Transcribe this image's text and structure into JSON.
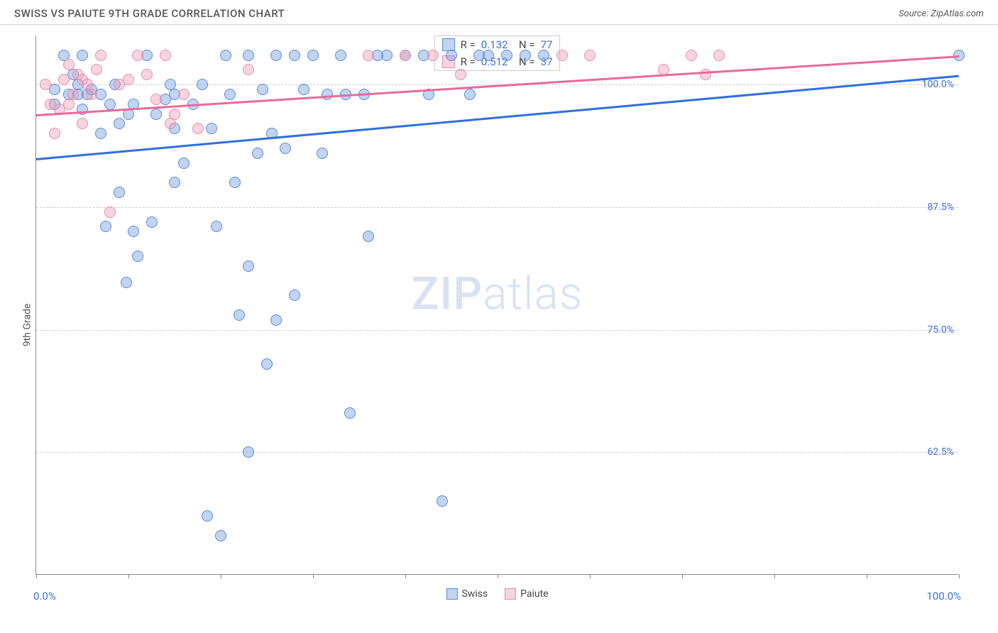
{
  "header": {
    "title": "SWISS VS PAIUTE 9TH GRADE CORRELATION CHART",
    "source": "Source: ZipAtlas.com"
  },
  "chart": {
    "type": "scatter",
    "ylabel": "9th Grade",
    "xlim": [
      0,
      100
    ],
    "ylim": [
      50,
      105
    ],
    "xtick_positions": [
      0,
      10,
      20,
      30,
      40,
      50,
      60,
      70,
      80,
      90,
      100
    ],
    "ytick_positions": [
      62.5,
      75,
      87.5,
      100
    ],
    "ytick_labels": [
      "62.5%",
      "75.0%",
      "87.5%",
      "100.0%"
    ],
    "xlabel_min": "0.0%",
    "xlabel_max": "100.0%",
    "grid_color": "#cccccc",
    "axis_color": "#888888",
    "background_color": "#ffffff",
    "marker_radius": 8,
    "watermark": "ZIPatlas",
    "series": [
      {
        "name": "Swiss",
        "color_fill": "rgba(120,160,225,0.45)",
        "color_stroke": "#5a8bd0",
        "trend_color": "#2f6fe0",
        "R": "0.132",
        "N": "77",
        "trend": {
          "x1": 0,
          "y1": 92.5,
          "x2": 100,
          "y2": 101
        },
        "points": [
          [
            2,
            98
          ],
          [
            2,
            99.5
          ],
          [
            3,
            103
          ],
          [
            3.5,
            99
          ],
          [
            4,
            101
          ],
          [
            4.5,
            100
          ],
          [
            4.5,
            99
          ],
          [
            5,
            97.5
          ],
          [
            5,
            103
          ],
          [
            5.5,
            99
          ],
          [
            6,
            99.5
          ],
          [
            7,
            95
          ],
          [
            7,
            99
          ],
          [
            7.5,
            85.5
          ],
          [
            8,
            98
          ],
          [
            8.5,
            100
          ],
          [
            9,
            96
          ],
          [
            9,
            89
          ],
          [
            9.8,
            79.8
          ],
          [
            10,
            97
          ],
          [
            10.5,
            85
          ],
          [
            10.5,
            98
          ],
          [
            11,
            82.5
          ],
          [
            12,
            103
          ],
          [
            12.5,
            86
          ],
          [
            13,
            97
          ],
          [
            14,
            98.5
          ],
          [
            14.5,
            100
          ],
          [
            15,
            99
          ],
          [
            15,
            95.5
          ],
          [
            15,
            90
          ],
          [
            16,
            92
          ],
          [
            17,
            98
          ],
          [
            18,
            100
          ],
          [
            18.5,
            56
          ],
          [
            19,
            95.5
          ],
          [
            19.5,
            85.5
          ],
          [
            20,
            54
          ],
          [
            20.5,
            103
          ],
          [
            21,
            99
          ],
          [
            21.5,
            90
          ],
          [
            22,
            76.5
          ],
          [
            23,
            81.5
          ],
          [
            23,
            103
          ],
          [
            23,
            62.5
          ],
          [
            24,
            93
          ],
          [
            24.5,
            99.5
          ],
          [
            25,
            71.5
          ],
          [
            25.5,
            95
          ],
          [
            26,
            103
          ],
          [
            26,
            76
          ],
          [
            27,
            93.5
          ],
          [
            28,
            103
          ],
          [
            28,
            78.5
          ],
          [
            29,
            99.5
          ],
          [
            30,
            103
          ],
          [
            31,
            93
          ],
          [
            31.5,
            99
          ],
          [
            33,
            103
          ],
          [
            33.5,
            99
          ],
          [
            34,
            66.5
          ],
          [
            35.5,
            99
          ],
          [
            36,
            84.5
          ],
          [
            37,
            103
          ],
          [
            38,
            103
          ],
          [
            40,
            103
          ],
          [
            42,
            103
          ],
          [
            42.5,
            99
          ],
          [
            44,
            57.5
          ],
          [
            45,
            103
          ],
          [
            47,
            99
          ],
          [
            48,
            103
          ],
          [
            49,
            103
          ],
          [
            51,
            103
          ],
          [
            53,
            103
          ],
          [
            55,
            103
          ],
          [
            100,
            103
          ]
        ]
      },
      {
        "name": "Paiute",
        "color_fill": "rgba(240,160,185,0.45)",
        "color_stroke": "#e38fae",
        "trend_color": "#e86a9a",
        "R": "0.512",
        "N": "37",
        "trend": {
          "x1": 0,
          "y1": 97,
          "x2": 100,
          "y2": 103
        },
        "points": [
          [
            1,
            100
          ],
          [
            1.5,
            98
          ],
          [
            2,
            95
          ],
          [
            2.5,
            97.5
          ],
          [
            3,
            100.5
          ],
          [
            3.5,
            98
          ],
          [
            3.5,
            102
          ],
          [
            4,
            99
          ],
          [
            4.5,
            101
          ],
          [
            5,
            100.5
          ],
          [
            5,
            96
          ],
          [
            5.5,
            100
          ],
          [
            6,
            99
          ],
          [
            6.5,
            101.5
          ],
          [
            7,
            103
          ],
          [
            8,
            87
          ],
          [
            9,
            100
          ],
          [
            10,
            100.5
          ],
          [
            11,
            103
          ],
          [
            12,
            101
          ],
          [
            13,
            98.5
          ],
          [
            14,
            103
          ],
          [
            14.5,
            96
          ],
          [
            15,
            97
          ],
          [
            16,
            99
          ],
          [
            17.5,
            95.5
          ],
          [
            23,
            101.5
          ],
          [
            36,
            103
          ],
          [
            40,
            103
          ],
          [
            43,
            103
          ],
          [
            46,
            101
          ],
          [
            57,
            103
          ],
          [
            60,
            103
          ],
          [
            68,
            101.5
          ],
          [
            71,
            103
          ],
          [
            72.5,
            101
          ],
          [
            74,
            103
          ]
        ]
      }
    ],
    "legend_bottom": [
      {
        "label": "Swiss",
        "fill": "rgba(120,160,225,0.45)",
        "stroke": "#5a8bd0"
      },
      {
        "label": "Paiute",
        "fill": "rgba(240,160,185,0.45)",
        "stroke": "#e38fae"
      }
    ]
  }
}
